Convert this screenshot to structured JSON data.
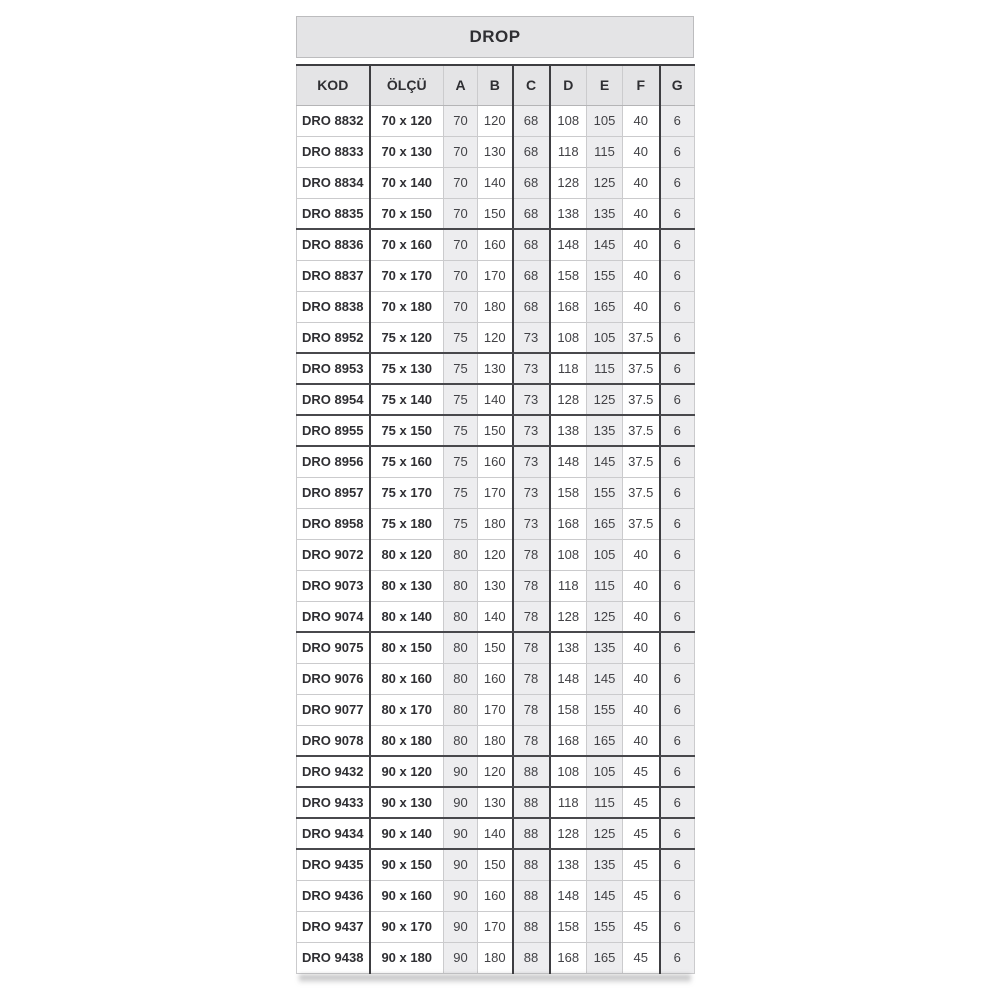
{
  "title": "DROP",
  "table": {
    "columns": [
      "KOD",
      "ÖLÇÜ",
      "A",
      "B",
      "C",
      "D",
      "E",
      "F",
      "G"
    ],
    "rows": [
      {
        "kod": "DRO 8832",
        "olcu": "70 x 120",
        "values": [
          "70",
          "120",
          "68",
          "108",
          "105",
          "40",
          "6"
        ]
      },
      {
        "kod": "DRO 8833",
        "olcu": "70 x 130",
        "values": [
          "70",
          "130",
          "68",
          "118",
          "115",
          "40",
          "6"
        ]
      },
      {
        "kod": "DRO 8834",
        "olcu": "70 x 140",
        "values": [
          "70",
          "140",
          "68",
          "128",
          "125",
          "40",
          "6"
        ]
      },
      {
        "kod": "DRO 8835",
        "olcu": "70 x 150",
        "values": [
          "70",
          "150",
          "68",
          "138",
          "135",
          "40",
          "6"
        ],
        "heavy_bottom": true
      },
      {
        "kod": "DRO 8836",
        "olcu": "70 x 160",
        "values": [
          "70",
          "160",
          "68",
          "148",
          "145",
          "40",
          "6"
        ]
      },
      {
        "kod": "DRO 8837",
        "olcu": "70 x 170",
        "values": [
          "70",
          "170",
          "68",
          "158",
          "155",
          "40",
          "6"
        ]
      },
      {
        "kod": "DRO 8838",
        "olcu": "70 x 180",
        "values": [
          "70",
          "180",
          "68",
          "168",
          "165",
          "40",
          "6"
        ]
      },
      {
        "kod": "DRO 8952",
        "olcu": "75 x 120",
        "values": [
          "75",
          "120",
          "73",
          "108",
          "105",
          "37.5",
          "6"
        ],
        "heavy_bottom": true
      },
      {
        "kod": "DRO 8953",
        "olcu": "75 x 130",
        "values": [
          "75",
          "130",
          "73",
          "118",
          "115",
          "37.5",
          "6"
        ],
        "heavy_bottom": true
      },
      {
        "kod": "DRO 8954",
        "olcu": "75 x 140",
        "values": [
          "75",
          "140",
          "73",
          "128",
          "125",
          "37.5",
          "6"
        ],
        "heavy_bottom": true
      },
      {
        "kod": "DRO 8955",
        "olcu": "75 x 150",
        "values": [
          "75",
          "150",
          "73",
          "138",
          "135",
          "37.5",
          "6"
        ],
        "heavy_bottom": true
      },
      {
        "kod": "DRO 8956",
        "olcu": "75 x 160",
        "values": [
          "75",
          "160",
          "73",
          "148",
          "145",
          "37.5",
          "6"
        ]
      },
      {
        "kod": "DRO 8957",
        "olcu": "75 x 170",
        "values": [
          "75",
          "170",
          "73",
          "158",
          "155",
          "37.5",
          "6"
        ]
      },
      {
        "kod": "DRO 8958",
        "olcu": "75 x 180",
        "values": [
          "75",
          "180",
          "73",
          "168",
          "165",
          "37.5",
          "6"
        ]
      },
      {
        "kod": "DRO 9072",
        "olcu": "80 x 120",
        "values": [
          "80",
          "120",
          "78",
          "108",
          "105",
          "40",
          "6"
        ]
      },
      {
        "kod": "DRO 9073",
        "olcu": "80 x 130",
        "values": [
          "80",
          "130",
          "78",
          "118",
          "115",
          "40",
          "6"
        ]
      },
      {
        "kod": "DRO 9074",
        "olcu": "80 x 140",
        "values": [
          "80",
          "140",
          "78",
          "128",
          "125",
          "40",
          "6"
        ],
        "heavy_bottom": true
      },
      {
        "kod": "DRO 9075",
        "olcu": "80 x 150",
        "values": [
          "80",
          "150",
          "78",
          "138",
          "135",
          "40",
          "6"
        ]
      },
      {
        "kod": "DRO 9076",
        "olcu": "80 x 160",
        "values": [
          "80",
          "160",
          "78",
          "148",
          "145",
          "40",
          "6"
        ]
      },
      {
        "kod": "DRO 9077",
        "olcu": "80 x 170",
        "values": [
          "80",
          "170",
          "78",
          "158",
          "155",
          "40",
          "6"
        ]
      },
      {
        "kod": "DRO 9078",
        "olcu": "80 x 180",
        "values": [
          "80",
          "180",
          "78",
          "168",
          "165",
          "40",
          "6"
        ],
        "heavy_bottom": true
      },
      {
        "kod": "DRO 9432",
        "olcu": "90 x 120",
        "values": [
          "90",
          "120",
          "88",
          "108",
          "105",
          "45",
          "6"
        ],
        "heavy_bottom": true
      },
      {
        "kod": "DRO 9433",
        "olcu": "90 x 130",
        "values": [
          "90",
          "130",
          "88",
          "118",
          "115",
          "45",
          "6"
        ],
        "heavy_bottom": true
      },
      {
        "kod": "DRO 9434",
        "olcu": "90 x 140",
        "values": [
          "90",
          "140",
          "88",
          "128",
          "125",
          "45",
          "6"
        ],
        "heavy_bottom": true
      },
      {
        "kod": "DRO 9435",
        "olcu": "90 x 150",
        "values": [
          "90",
          "150",
          "88",
          "138",
          "135",
          "45",
          "6"
        ]
      },
      {
        "kod": "DRO 9436",
        "olcu": "90 x 160",
        "values": [
          "90",
          "160",
          "88",
          "148",
          "145",
          "45",
          "6"
        ]
      },
      {
        "kod": "DRO 9437",
        "olcu": "90 x 170",
        "values": [
          "90",
          "170",
          "88",
          "158",
          "155",
          "45",
          "6"
        ]
      },
      {
        "kod": "DRO 9438",
        "olcu": "90 x 180",
        "values": [
          "90",
          "180",
          "88",
          "168",
          "165",
          "45",
          "6"
        ]
      }
    ]
  },
  "colors": {
    "header_bg": "#e4e4e6",
    "shaded_cell_bg": "#ededef",
    "dark_border": "#3d3d41",
    "light_border": "#cbcbcd",
    "text_dark": "#2f2f33",
    "text_number": "#424246",
    "page_bg": "#ffffff"
  }
}
